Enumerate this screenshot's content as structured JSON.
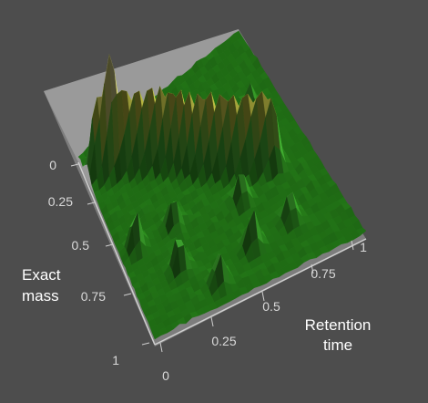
{
  "chart_data": {
    "type": "surface",
    "xlabel_lines": [
      "Exact",
      "mass"
    ],
    "ylabel_lines": [
      "Retention",
      "time"
    ],
    "x_ticks": [
      "0",
      "0.25",
      "0.5",
      "0.75",
      "1"
    ],
    "y_ticks": [
      "0",
      "0.25",
      "0.5",
      "0.75",
      "1"
    ],
    "xlim": [
      0,
      1
    ],
    "ylim": [
      0,
      1
    ],
    "colors": {
      "background": "#4d4d4d",
      "back_wall": "#8c8c8c",
      "floor": "#b3b3b3",
      "low": "#1f7a12",
      "mid": "#4cc53a",
      "high": "#e8e0b8",
      "peak": "#d9a3a3"
    },
    "ridge": {
      "description_free": true,
      "path": [
        [
          0.05,
          0.12
        ],
        [
          0.2,
          0.18
        ],
        [
          0.35,
          0.26
        ],
        [
          0.5,
          0.38
        ],
        [
          0.65,
          0.48
        ],
        [
          0.8,
          0.55
        ]
      ],
      "height": 0.9
    },
    "peaks": [
      {
        "x": 0.12,
        "y": 0.15,
        "h": 0.75
      },
      {
        "x": 0.08,
        "y": 0.55,
        "h": 0.6
      },
      {
        "x": 0.22,
        "y": 0.75,
        "h": 0.55
      },
      {
        "x": 0.28,
        "y": 0.55,
        "h": 0.45
      },
      {
        "x": 0.35,
        "y": 0.9,
        "h": 0.5
      },
      {
        "x": 0.55,
        "y": 0.82,
        "h": 0.55
      },
      {
        "x": 0.6,
        "y": 0.62,
        "h": 0.45
      },
      {
        "x": 0.75,
        "y": 0.8,
        "h": 0.45
      },
      {
        "x": 0.85,
        "y": 0.3,
        "h": 0.4
      },
      {
        "x": 0.45,
        "y": 0.15,
        "h": 0.5
      }
    ]
  }
}
